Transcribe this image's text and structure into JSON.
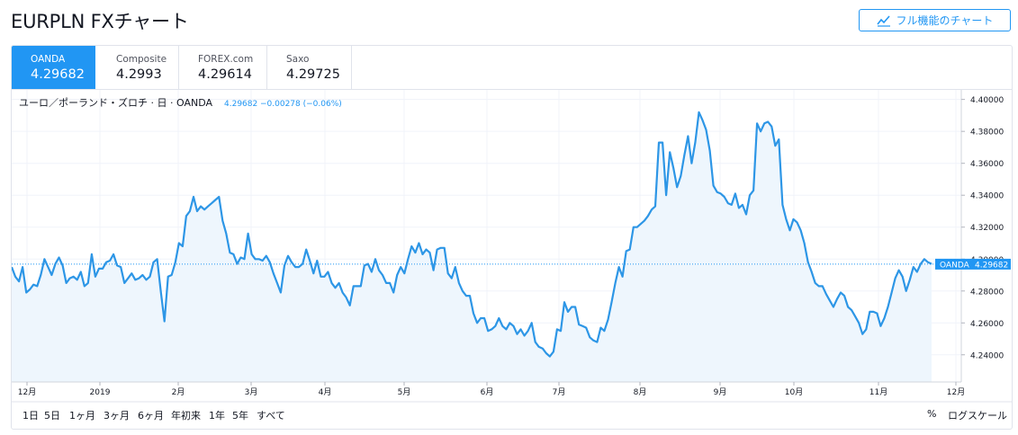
{
  "page": {
    "title": "EURPLN FXチャート"
  },
  "full_chart_button": {
    "label": "フル機能のチャート",
    "icon": "chart-line-icon"
  },
  "tabs": [
    {
      "name": "OANDA",
      "value": "4.29682",
      "active": true
    },
    {
      "name": "Composite",
      "value": "4.2993",
      "active": false
    },
    {
      "name": "FOREX.com",
      "value": "4.29614",
      "active": false
    },
    {
      "name": "Saxo",
      "value": "4.29725",
      "active": false
    }
  ],
  "legend": {
    "symbol": "ユーロ／ポーランド・ズロチ · 日 · OANDA",
    "last": "4.29682",
    "change": "−0.00278 (−0.06%)"
  },
  "price_label": {
    "name": "OANDA",
    "value": "4.29682"
  },
  "ranges": [
    "1日",
    "5日",
    "1ヶ月",
    "3ヶ月",
    "6ヶ月",
    "年初来",
    "1年",
    "5年",
    "すべて"
  ],
  "bottom_right": {
    "percent": "%",
    "log_scale": "ログスケール"
  },
  "colors": {
    "accent": "#2196f3",
    "line": "#2d96e6",
    "area": "#eef6fd",
    "grid": "#f0f3fa",
    "text": "#131722"
  },
  "chart_data": {
    "type": "area",
    "series": [
      {
        "name": "OANDA",
        "values": [
          4.295,
          4.289,
          4.286,
          4.295,
          4.279,
          4.281,
          4.284,
          4.283,
          4.29,
          4.3,
          4.295,
          4.29,
          4.297,
          4.301,
          4.296,
          4.285,
          4.288,
          4.289,
          4.287,
          4.292,
          4.283,
          4.285,
          4.303,
          4.289,
          4.294,
          4.294,
          4.298,
          4.299,
          4.303,
          4.296,
          4.295,
          4.285,
          4.288,
          4.291,
          4.287,
          4.288,
          4.29,
          4.287,
          4.289,
          4.298,
          4.3,
          4.28,
          4.261,
          4.289,
          4.29,
          4.298,
          4.31,
          4.308,
          4.327,
          4.33,
          4.339,
          4.33,
          4.333,
          4.331,
          4.333,
          4.335,
          4.337,
          4.339,
          4.324,
          4.316,
          4.304,
          4.303,
          4.297,
          4.301,
          4.3,
          4.316,
          4.303,
          4.3,
          4.3,
          4.299,
          4.302,
          4.298,
          4.291,
          4.285,
          4.279,
          4.296,
          4.302,
          4.298,
          4.295,
          4.295,
          4.297,
          4.306,
          4.299,
          4.291,
          4.299,
          4.289,
          4.289,
          4.292,
          4.285,
          4.282,
          4.285,
          4.279,
          4.276,
          4.271,
          4.283,
          4.283,
          4.283,
          4.296,
          4.297,
          4.292,
          4.3,
          4.293,
          4.29,
          4.285,
          4.285,
          4.279,
          4.29,
          4.295,
          4.291,
          4.3,
          4.308,
          4.304,
          4.31,
          4.303,
          4.306,
          4.304,
          4.293,
          4.306,
          4.307,
          4.307,
          4.291,
          4.288,
          4.295,
          4.285,
          4.28,
          4.277,
          4.277,
          4.266,
          4.26,
          4.263,
          4.263,
          4.255,
          4.256,
          4.258,
          4.263,
          4.258,
          4.256,
          4.26,
          4.258,
          4.253,
          4.256,
          4.252,
          4.255,
          4.26,
          4.248,
          4.245,
          4.244,
          4.241,
          4.239,
          4.242,
          4.256,
          4.255,
          4.273,
          4.267,
          4.27,
          4.27,
          4.259,
          4.258,
          4.257,
          4.251,
          4.249,
          4.248,
          4.257,
          4.255,
          4.262,
          4.273,
          4.285,
          4.295,
          4.289,
          4.305,
          4.306,
          4.32,
          4.32,
          4.322,
          4.324,
          4.327,
          4.331,
          4.333,
          4.373,
          4.373,
          4.34,
          4.367,
          4.357,
          4.345,
          4.352,
          4.365,
          4.377,
          4.36,
          4.373,
          4.392,
          4.387,
          4.381,
          4.368,
          4.346,
          4.342,
          4.341,
          4.339,
          4.335,
          4.334,
          4.341,
          4.332,
          4.334,
          4.328,
          4.34,
          4.343,
          4.385,
          4.38,
          4.385,
          4.386,
          4.383,
          4.371,
          4.375,
          4.334,
          4.325,
          4.318,
          4.325,
          4.323,
          4.318,
          4.31,
          4.298,
          4.292,
          4.285,
          4.283,
          4.283,
          4.278,
          4.274,
          4.27,
          4.275,
          4.279,
          4.277,
          4.27,
          4.268,
          4.264,
          4.26,
          4.253,
          4.256,
          4.267,
          4.267,
          4.266,
          4.258,
          4.263,
          4.27,
          4.279,
          4.288,
          4.293,
          4.289,
          4.28,
          4.287,
          4.295,
          4.292,
          4.297,
          4.3,
          4.298,
          4.297
        ]
      }
    ],
    "x_tick_labels": [
      "12月",
      "2019",
      "2月",
      "3月",
      "4月",
      "5月",
      "6月",
      "7月",
      "8月",
      "9月",
      "10月",
      "11月",
      "12月"
    ],
    "y_tick_labels": [
      "4.40000",
      "4.38000",
      "4.36000",
      "4.34000",
      "4.32000",
      "4.30000",
      "4.28000",
      "4.26000",
      "4.24000"
    ],
    "ylim": [
      4.223,
      4.406
    ],
    "grid": true,
    "last_value": 4.29682
  }
}
